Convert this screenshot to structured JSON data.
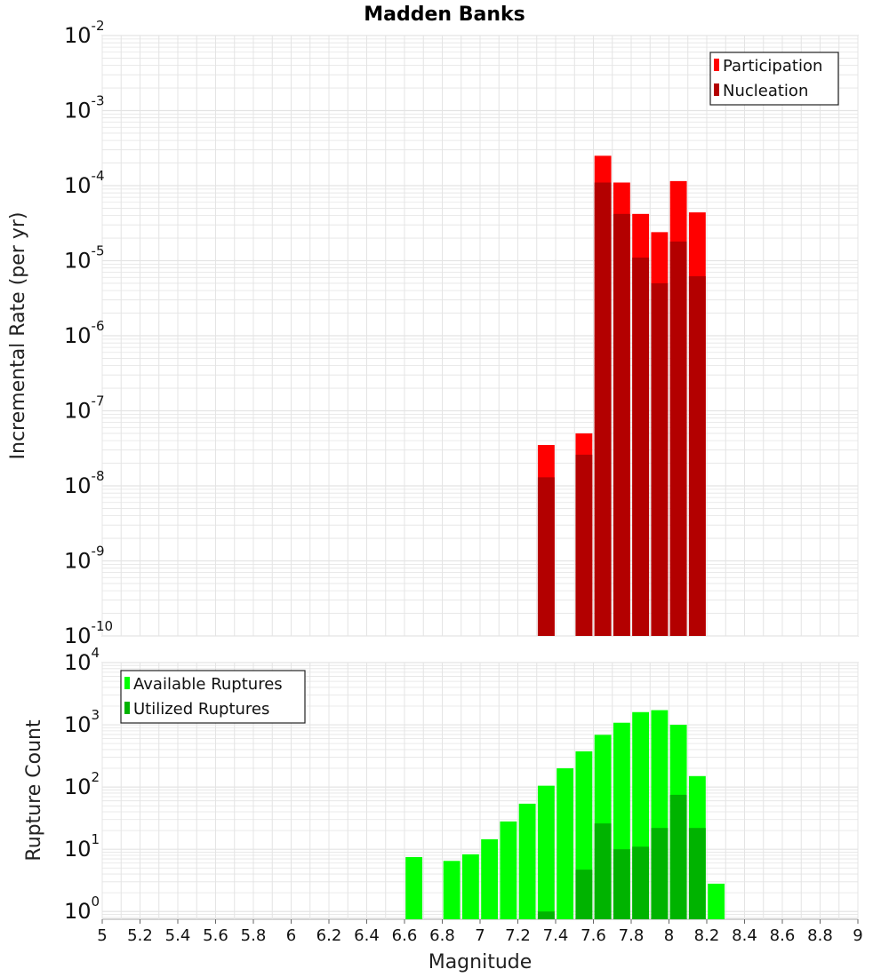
{
  "colors": {
    "participation": "#ff0000",
    "nucleation": "#b30000",
    "available": "#00ff00",
    "utilized": "#00b300",
    "grid": "#e4e4e4",
    "frame": "#aaaaaa"
  },
  "chart_data": [
    {
      "type": "bar",
      "title": "Madden Banks",
      "xlabel": "",
      "ylabel": "Incremental Rate (per yr)",
      "yscale": "log",
      "ylim": [
        1e-10,
        0.01
      ],
      "xlim": [
        5,
        9
      ],
      "grid": true,
      "legend_position": "top-right",
      "series": [
        {
          "name": "Participation",
          "x": [
            7.35,
            7.55,
            7.65,
            7.75,
            7.85,
            7.95,
            8.05,
            8.15
          ],
          "values": [
            3.5e-08,
            5e-08,
            0.00025,
            0.00011,
            4.2e-05,
            2.4e-05,
            0.000115,
            4.4e-05
          ]
        },
        {
          "name": "Nucleation",
          "x": [
            7.35,
            7.55,
            7.65,
            7.75,
            7.85,
            7.95,
            8.05,
            8.15
          ],
          "values": [
            1.3e-08,
            2.6e-08,
            0.00011,
            4.2e-05,
            1.1e-05,
            5e-06,
            1.8e-05,
            6.2e-06
          ]
        }
      ],
      "y_ticks": [
        {
          "base": "10",
          "exp": "-2"
        },
        {
          "base": "10",
          "exp": "-3"
        },
        {
          "base": "10",
          "exp": "-4"
        },
        {
          "base": "10",
          "exp": "-5"
        },
        {
          "base": "10",
          "exp": "-6"
        },
        {
          "base": "10",
          "exp": "-7"
        },
        {
          "base": "10",
          "exp": "-8"
        },
        {
          "base": "10",
          "exp": "-9"
        },
        {
          "base": "10",
          "exp": "-10"
        }
      ]
    },
    {
      "type": "bar",
      "xlabel": "Magnitude",
      "ylabel": "Rupture Count",
      "yscale": "log",
      "ylim": [
        0.75,
        10000
      ],
      "xlim": [
        5,
        9
      ],
      "grid": true,
      "legend_position": "top-left",
      "series": [
        {
          "name": "Available Ruptures",
          "x": [
            6.65,
            6.85,
            6.95,
            7.05,
            7.15,
            7.25,
            7.35,
            7.45,
            7.55,
            7.65,
            7.75,
            7.85,
            7.95,
            8.05,
            8.15,
            8.25
          ],
          "values": [
            7.5,
            6.5,
            8.3,
            14.5,
            28,
            54,
            105,
            200,
            375,
            690,
            1080,
            1600,
            1720,
            1000,
            150,
            2.8
          ]
        },
        {
          "name": "Utilized Ruptures",
          "x": [
            7.35,
            7.55,
            7.65,
            7.75,
            7.85,
            7.95,
            8.05,
            8.15
          ],
          "values": [
            1,
            4.7,
            26,
            10,
            11,
            22,
            75,
            22
          ]
        }
      ],
      "y_ticks": [
        {
          "base": "10",
          "exp": "4"
        },
        {
          "base": "10",
          "exp": "3"
        },
        {
          "base": "10",
          "exp": "2"
        },
        {
          "base": "10",
          "exp": "1"
        },
        {
          "base": "10",
          "exp": "0"
        }
      ],
      "x_ticks": [
        "5",
        "5.2",
        "5.4",
        "5.6",
        "5.8",
        "6",
        "6.2",
        "6.4",
        "6.6",
        "6.8",
        "7",
        "7.2",
        "7.4",
        "7.6",
        "7.8",
        "8",
        "8.2",
        "8.4",
        "8.6",
        "8.8",
        "9"
      ]
    }
  ]
}
